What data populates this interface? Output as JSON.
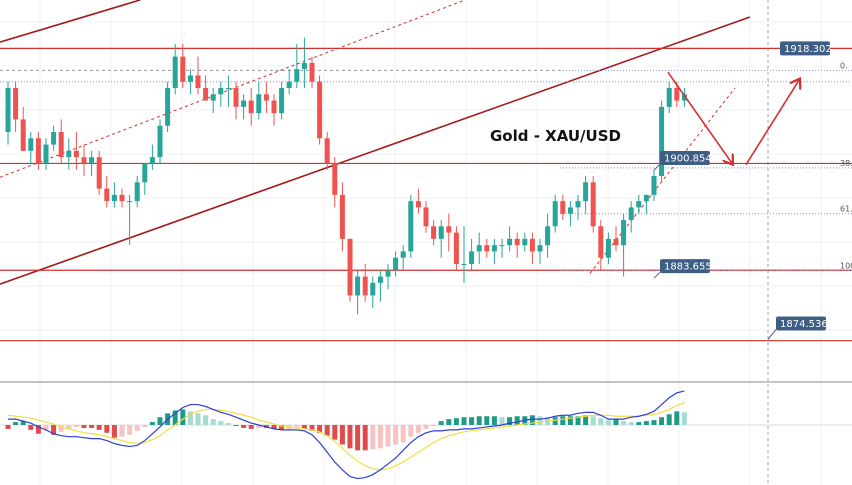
{
  "chart_data": {
    "type": "candlestick",
    "title": "Gold - XAU/USD",
    "y_axis_range": [
      1870,
      1926
    ],
    "price_labels": [
      {
        "value": "1918.302",
        "price": 1918.302
      },
      {
        "value": "1900.854",
        "price": 1900.854
      },
      {
        "value": "1883.655",
        "price": 1883.655
      },
      {
        "value": "1874.536",
        "price": 1874.536
      }
    ],
    "fibonacci_labels": [
      {
        "text": "0.",
        "price": 1914.8
      },
      {
        "text": "38.",
        "price": 1899.3
      },
      {
        "text": "61.",
        "price": 1892.0
      },
      {
        "text": "100.",
        "price": 1883.0
      }
    ],
    "horizontal_levels": [
      1918.302,
      1900.0,
      1883.0,
      1871.8
    ],
    "candles_ohlc": [
      [
        1905,
        1913,
        1903,
        1912
      ],
      [
        1912,
        1913,
        1905,
        1907
      ],
      [
        1907,
        1909,
        1902,
        1902
      ],
      [
        1902,
        1905,
        1900,
        1904
      ],
      [
        1904,
        1905,
        1899,
        1900
      ],
      [
        1900,
        1904,
        1899,
        1903
      ],
      [
        1903,
        1906,
        1902,
        1905
      ],
      [
        1905,
        1907,
        1900,
        1901
      ],
      [
        1901,
        1904,
        1899,
        1902
      ],
      [
        1902,
        1905,
        1899,
        1901
      ],
      [
        1901,
        1903,
        1898,
        1900
      ],
      [
        1900,
        1902,
        1898,
        1901
      ],
      [
        1901,
        1902,
        1895,
        1896
      ],
      [
        1896,
        1898,
        1893,
        1894
      ],
      [
        1894,
        1897,
        1893,
        1895
      ],
      [
        1895,
        1896,
        1893,
        1894
      ],
      [
        1894,
        1895,
        1887,
        1894
      ],
      [
        1894,
        1898,
        1893,
        1897
      ],
      [
        1897,
        1900,
        1895,
        1900
      ],
      [
        1900,
        1903,
        1899,
        1901
      ],
      [
        1901,
        1907,
        1900,
        1906
      ],
      [
        1906,
        1913,
        1905,
        1912
      ],
      [
        1912,
        1919,
        1911,
        1917
      ],
      [
        1917,
        1919,
        1912,
        1913
      ],
      [
        1913,
        1915,
        1911,
        1914
      ],
      [
        1914,
        1917,
        1911,
        1912
      ],
      [
        1912,
        1914,
        1910,
        1910
      ],
      [
        1910,
        1912,
        1908,
        1911
      ],
      [
        1911,
        1913,
        1909,
        1912
      ],
      [
        1912,
        1914,
        1909,
        1912
      ],
      [
        1912,
        1913,
        1907,
        1909
      ],
      [
        1909,
        1911,
        1907,
        1910
      ],
      [
        1910,
        1912,
        1906,
        1908
      ],
      [
        1908,
        1913,
        1907,
        1911
      ],
      [
        1911,
        1913,
        1908,
        1910
      ],
      [
        1910,
        1911,
        1906,
        1908
      ],
      [
        1908,
        1913,
        1907,
        1912
      ],
      [
        1912,
        1915,
        1911,
        1913
      ],
      [
        1913,
        1919,
        1912,
        1915
      ],
      [
        1915,
        1920,
        1912,
        1916
      ],
      [
        1916,
        1917,
        1912,
        1913
      ],
      [
        1913,
        1914,
        1903,
        1904
      ],
      [
        1904,
        1905,
        1899,
        1900
      ],
      [
        1900,
        1901,
        1893,
        1895
      ],
      [
        1895,
        1897,
        1886,
        1888
      ],
      [
        1888,
        1888,
        1878,
        1879
      ],
      [
        1879,
        1883,
        1876,
        1882
      ],
      [
        1882,
        1884,
        1878,
        1879
      ],
      [
        1879,
        1882,
        1877,
        1881
      ],
      [
        1881,
        1883,
        1878,
        1882
      ],
      [
        1882,
        1884,
        1880,
        1883
      ],
      [
        1883,
        1886,
        1882,
        1885
      ],
      [
        1885,
        1887,
        1883,
        1886
      ],
      [
        1886,
        1895,
        1885,
        1894
      ],
      [
        1894,
        1896,
        1892,
        1893
      ],
      [
        1893,
        1894,
        1889,
        1890
      ],
      [
        1890,
        1891,
        1887,
        1888
      ],
      [
        1888,
        1891,
        1885,
        1890
      ],
      [
        1890,
        1892,
        1886,
        1889
      ],
      [
        1889,
        1890,
        1883,
        1884
      ],
      [
        1884,
        1890,
        1881,
        1884
      ],
      [
        1884,
        1888,
        1883,
        1886
      ],
      [
        1886,
        1889,
        1884,
        1887
      ],
      [
        1887,
        1888,
        1885,
        1886
      ],
      [
        1886,
        1888,
        1884,
        1887
      ],
      [
        1887,
        1888,
        1885,
        1887
      ],
      [
        1887,
        1890,
        1886,
        1888
      ],
      [
        1888,
        1889,
        1885,
        1887
      ],
      [
        1887,
        1889,
        1886,
        1888
      ],
      [
        1888,
        1889,
        1884,
        1886
      ],
      [
        1886,
        1888,
        1884,
        1887
      ],
      [
        1887,
        1892,
        1885,
        1890
      ],
      [
        1890,
        1895,
        1889,
        1894
      ],
      [
        1894,
        1895,
        1891,
        1892
      ],
      [
        1892,
        1894,
        1890,
        1893
      ],
      [
        1893,
        1895,
        1891,
        1894
      ],
      [
        1894,
        1898,
        1892,
        1897
      ],
      [
        1897,
        1898,
        1889,
        1890
      ],
      [
        1890,
        1891,
        1883,
        1885
      ],
      [
        1885,
        1889,
        1884,
        1888
      ],
      [
        1888,
        1890,
        1886,
        1887
      ],
      [
        1887,
        1892,
        1882,
        1891
      ],
      [
        1891,
        1894,
        1889,
        1893
      ],
      [
        1893,
        1895,
        1892,
        1894
      ],
      [
        1894,
        1895,
        1892,
        1895
      ],
      [
        1895,
        1899,
        1894,
        1898
      ],
      [
        1898,
        1910,
        1897,
        1909
      ],
      [
        1909,
        1913,
        1908,
        1912
      ],
      [
        1912,
        1913,
        1909,
        1910
      ],
      [
        1910,
        1912,
        1909,
        1911
      ]
    ],
    "macd_histogram": [
      -0.4,
      0.3,
      0.4,
      -0.5,
      -0.9,
      -0.6,
      -1.0,
      -0.7,
      -0.4,
      -0.2,
      -0.3,
      -0.3,
      -0.5,
      -0.8,
      -1.3,
      -1.2,
      -1.0,
      -0.6,
      -0.2,
      0.3,
      0.8,
      1.2,
      1.5,
      1.6,
      1.4,
      1.2,
      1.0,
      0.6,
      0.4,
      0.2,
      -0.1,
      -0.3,
      -0.4,
      -0.3,
      -0.3,
      -0.4,
      -0.5,
      -0.4,
      -0.3,
      -0.4,
      -0.6,
      -0.8,
      -1.1,
      -1.5,
      -2.0,
      -2.4,
      -2.6,
      -2.6,
      -2.5,
      -2.4,
      -2.2,
      -2.0,
      -1.8,
      -1.2,
      -0.8,
      -0.4,
      -0.1,
      0.4,
      0.6,
      0.7,
      0.8,
      0.8,
      0.9,
      0.9,
      0.9,
      0.8,
      0.8,
      0.9,
      0.9,
      1.0,
      0.9,
      0.8,
      0.8,
      0.9,
      0.9,
      0.9,
      1.0,
      0.9,
      0.7,
      0.5,
      0.6,
      0.4,
      0.3,
      0.3,
      0.4,
      0.5,
      0.8,
      1.1,
      1.4,
      1.3
    ],
    "macd_line": [
      0.6,
      0.6,
      0.4,
      0.2,
      -0.2,
      -0.5,
      -0.9,
      -1.1,
      -1.2,
      -1.2,
      -1.3,
      -1.4,
      -1.4,
      -1.6,
      -1.9,
      -2.1,
      -2.2,
      -2.1,
      -1.6,
      -0.9,
      -0.2,
      0.6,
      1.2,
      1.8,
      2.1,
      2.1,
      1.9,
      1.6,
      1.3,
      1.1,
      0.8,
      0.5,
      0.2,
      0.0,
      -0.2,
      -0.4,
      -0.5,
      -0.5,
      -0.5,
      -0.6,
      -1.0,
      -1.8,
      -2.8,
      -3.8,
      -4.6,
      -5.3,
      -5.5,
      -5.4,
      -5.1,
      -4.6,
      -4.0,
      -3.4,
      -2.6,
      -1.8,
      -1.2,
      -0.8,
      -0.6,
      -0.6,
      -0.5,
      -0.5,
      -0.4,
      -0.4,
      -0.3,
      -0.2,
      -0.1,
      0.0,
      0.2,
      0.3,
      0.5,
      0.6,
      0.6,
      0.7,
      0.9,
      1.0,
      1.0,
      1.2,
      1.3,
      1.3,
      1.0,
      0.6,
      0.6,
      0.6,
      0.8,
      0.9,
      1.1,
      1.4,
      2.1,
      2.8,
      3.3,
      3.5
    ],
    "signal_line": [
      1.0,
      0.9,
      0.8,
      0.7,
      0.5,
      0.3,
      0.1,
      -0.2,
      -0.4,
      -0.6,
      -0.8,
      -0.9,
      -1.0,
      -1.2,
      -1.4,
      -1.6,
      -1.8,
      -1.9,
      -1.8,
      -1.5,
      -1.1,
      -0.5,
      0.0,
      0.6,
      1.1,
      1.4,
      1.6,
      1.6,
      1.5,
      1.4,
      1.2,
      1.0,
      0.8,
      0.5,
      0.3,
      0.1,
      -0.1,
      -0.2,
      -0.3,
      -0.4,
      -0.5,
      -0.7,
      -1.1,
      -1.7,
      -2.4,
      -3.1,
      -3.7,
      -4.2,
      -4.5,
      -4.6,
      -4.5,
      -4.2,
      -3.8,
      -3.3,
      -2.8,
      -2.3,
      -1.8,
      -1.4,
      -1.1,
      -0.9,
      -0.7,
      -0.6,
      -0.5,
      -0.4,
      -0.3,
      -0.2,
      -0.1,
      0.0,
      0.1,
      0.2,
      0.3,
      0.4,
      0.5,
      0.6,
      0.7,
      0.8,
      0.9,
      1.0,
      1.0,
      1.0,
      0.9,
      0.9,
      0.9,
      0.9,
      1.0,
      1.1,
      1.3,
      1.6,
      2.0,
      2.3
    ],
    "colors": {
      "bull": "#26a69a",
      "bear": "#ef5350",
      "level_line": "#d32f2f",
      "trend_line": "#a21a1a",
      "macd_line": "#2f3fd6",
      "signal_line": "#f0e040",
      "label_box": "#3e5e86",
      "hist_pos_strong": "#1f9a88",
      "hist_pos_light": "#a6dbd2",
      "hist_neg_strong": "#e04a4a",
      "hist_neg_light": "#f6c2c2"
    },
    "grid": true
  }
}
